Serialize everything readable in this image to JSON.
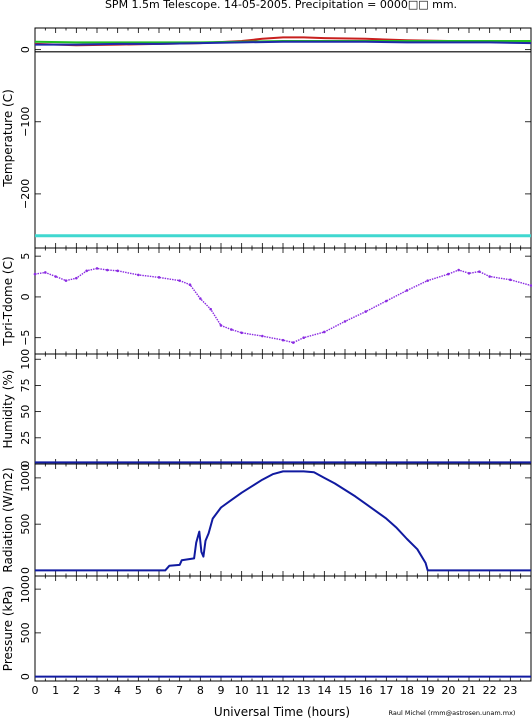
{
  "title": "SPM 1.5m Telescope. 14-05-2005. Precipitation = 0000□□ mm.",
  "xlabel": "Universal Time (hours)",
  "credit": "Raul Michel (rmm@astrosen.unam.mx)",
  "colors": {
    "red": "#c8201e",
    "green": "#22c022",
    "blue": "#1f2aa8",
    "black": "#000000",
    "cyan": "#40d8d0",
    "purple": "#8a2be2",
    "navy": "#101aa0"
  },
  "chart_data": [
    {
      "type": "line",
      "panel": "temperature",
      "ylabel": "Temperature (C)",
      "xlim": [
        0,
        24
      ],
      "ylim": [
        -275,
        30
      ],
      "yticks": [
        0,
        -100,
        -200
      ],
      "xticks": [
        0,
        1,
        2,
        3,
        4,
        5,
        6,
        7,
        8,
        9,
        10,
        11,
        12,
        13,
        14,
        15,
        16,
        17,
        18,
        19,
        20,
        21,
        22,
        23
      ],
      "series": [
        {
          "color": "red",
          "x": [
            0,
            2,
            4,
            6,
            8,
            10,
            11,
            12,
            13,
            14,
            16,
            18,
            20,
            22,
            24
          ],
          "y": [
            8,
            6,
            7,
            8,
            9,
            12,
            15,
            17,
            17,
            16,
            15,
            13,
            12,
            11,
            10
          ]
        },
        {
          "color": "green",
          "x": [
            0,
            2,
            4,
            6,
            8,
            10,
            12,
            14,
            16,
            18,
            20,
            22,
            24
          ],
          "y": [
            11,
            10,
            10,
            10,
            10,
            11,
            12,
            12,
            12,
            12,
            12,
            12,
            12
          ]
        },
        {
          "color": "blue",
          "x": [
            0,
            2,
            4,
            6,
            8,
            10,
            12,
            14,
            16,
            18,
            20,
            22,
            24
          ],
          "y": [
            7,
            7,
            8,
            8,
            9,
            10,
            11,
            11,
            11,
            10,
            10,
            10,
            9
          ]
        },
        {
          "color": "black",
          "x": [
            0,
            24
          ],
          "y": [
            -3,
            -3
          ]
        },
        {
          "color": "cyan",
          "x": [
            0,
            24
          ],
          "y": [
            -258,
            -258
          ]
        }
      ]
    },
    {
      "type": "scatter",
      "panel": "tpri_tdome",
      "ylabel": "Tpri-Tdome (C)",
      "xlim": [
        0,
        24
      ],
      "ylim": [
        -7,
        6
      ],
      "yticks": [
        5,
        0,
        -5
      ],
      "series": [
        {
          "color": "purple",
          "x": [
            0,
            0.5,
            1,
            1.5,
            2,
            2.5,
            3,
            3.5,
            4,
            5,
            6,
            7,
            7.5,
            8,
            8.5,
            9,
            9.5,
            10,
            11,
            12,
            12.5,
            13,
            14,
            15,
            16,
            17,
            18,
            19,
            20,
            20.5,
            21,
            21.5,
            22,
            23,
            24
          ],
          "y": [
            2.8,
            3.0,
            2.5,
            2.0,
            2.3,
            3.2,
            3.5,
            3.3,
            3.2,
            2.7,
            2.4,
            2.0,
            1.5,
            -0.2,
            -1.5,
            -3.5,
            -4.0,
            -4.4,
            -4.8,
            -5.3,
            -5.6,
            -5.0,
            -4.3,
            -3.0,
            -1.8,
            -0.5,
            0.8,
            2.0,
            2.8,
            3.3,
            2.9,
            3.1,
            2.5,
            2.1,
            1.4
          ]
        }
      ]
    },
    {
      "type": "line",
      "panel": "humidity",
      "ylabel": "Humidity (%)",
      "xlim": [
        0,
        24
      ],
      "ylim": [
        0,
        105
      ],
      "yticks": [
        0,
        25,
        50,
        75,
        100
      ],
      "series": [
        {
          "color": "navy",
          "x": [
            0,
            24
          ],
          "y": [
            1.5,
            1.5
          ]
        }
      ]
    },
    {
      "type": "line",
      "panel": "radiation",
      "ylabel": "Radiation (W/m2)",
      "xlim": [
        0,
        24
      ],
      "ylim": [
        -60,
        1150
      ],
      "yticks": [
        0,
        500,
        1000
      ],
      "series": [
        {
          "color": "navy",
          "x": [
            0,
            6.3,
            6.5,
            7.0,
            7.1,
            7.7,
            7.8,
            7.95,
            8.05,
            8.15,
            8.25,
            8.4,
            8.6,
            9.0,
            9.5,
            10.0,
            10.5,
            11.0,
            11.5,
            12.0,
            13.0,
            13.5,
            14.0,
            14.5,
            15.0,
            15.5,
            16.0,
            16.5,
            17.0,
            17.5,
            18.0,
            18.5,
            18.9,
            19.0,
            24
          ],
          "y": [
            0,
            0,
            50,
            60,
            110,
            130,
            300,
            420,
            200,
            150,
            320,
            400,
            560,
            680,
            760,
            840,
            910,
            980,
            1040,
            1070,
            1070,
            1060,
            1000,
            940,
            870,
            800,
            720,
            640,
            560,
            460,
            340,
            230,
            80,
            0,
            0
          ]
        }
      ]
    },
    {
      "type": "line",
      "panel": "pressure",
      "ylabel": "Pressure (kPa)",
      "xlim": [
        0,
        24
      ],
      "ylim": [
        -50,
        1150
      ],
      "yticks": [
        0,
        500,
        1000
      ],
      "series": [
        {
          "color": "navy",
          "x": [
            0,
            24
          ],
          "y": [
            0,
            0
          ]
        }
      ]
    }
  ]
}
